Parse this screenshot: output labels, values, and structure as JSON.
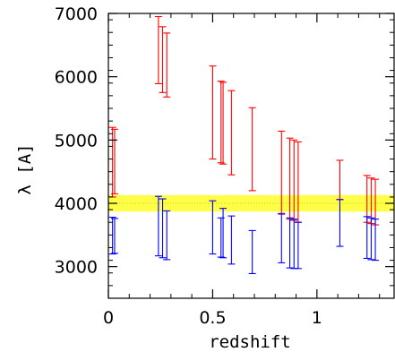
{
  "chart_data": {
    "type": "errorbar",
    "title": "",
    "xlabel": "redshift",
    "ylabel": "λ [A]",
    "xlim": [
      0,
      1.37
    ],
    "ylim": [
      2500,
      7000
    ],
    "x_ticks": [
      0,
      0.5,
      1
    ],
    "x_tick_labels": [
      "0",
      "0.5",
      "1"
    ],
    "y_ticks": [
      3000,
      4000,
      5000,
      6000,
      7000
    ],
    "y_tick_labels": [
      "3000",
      "4000",
      "5000",
      "6000",
      "7000"
    ],
    "grid": false,
    "band": {
      "y0": 3870,
      "y1": 4130,
      "color": "#ffff33",
      "reference_line": 4000
    },
    "series": [
      {
        "color": "#ff0000",
        "ranges": [
          {
            "x": 0.02,
            "low": 4100,
            "high": 5200
          },
          {
            "x": 0.03,
            "low": 4150,
            "high": 5170
          },
          {
            "x": 0.24,
            "low": 5890,
            "high": 6950
          },
          {
            "x": 0.26,
            "low": 5750,
            "high": 6790
          },
          {
            "x": 0.28,
            "low": 5680,
            "high": 6690
          },
          {
            "x": 0.5,
            "low": 4700,
            "high": 6170
          },
          {
            "x": 0.54,
            "low": 4640,
            "high": 5930
          },
          {
            "x": 0.55,
            "low": 4620,
            "high": 5910
          },
          {
            "x": 0.59,
            "low": 4450,
            "high": 5780
          },
          {
            "x": 0.69,
            "low": 4200,
            "high": 5510
          },
          {
            "x": 0.83,
            "low": 3840,
            "high": 5140
          },
          {
            "x": 0.87,
            "low": 3750,
            "high": 5030
          },
          {
            "x": 0.89,
            "low": 3730,
            "high": 5000
          },
          {
            "x": 0.91,
            "low": 3700,
            "high": 4970
          },
          {
            "x": 1.11,
            "low": 4060,
            "high": 4680
          },
          {
            "x": 1.24,
            "low": 3700,
            "high": 4440
          },
          {
            "x": 1.26,
            "low": 3680,
            "high": 4400
          },
          {
            "x": 1.28,
            "low": 3660,
            "high": 4380
          }
        ]
      },
      {
        "color": "#0000ff",
        "ranges": [
          {
            "x": 0.02,
            "low": 3200,
            "high": 3780
          },
          {
            "x": 0.03,
            "low": 3210,
            "high": 3760
          },
          {
            "x": 0.24,
            "low": 3170,
            "high": 4110
          },
          {
            "x": 0.26,
            "low": 3140,
            "high": 4070
          },
          {
            "x": 0.28,
            "low": 3110,
            "high": 3880
          },
          {
            "x": 0.5,
            "low": 3200,
            "high": 4040
          },
          {
            "x": 0.54,
            "low": 3150,
            "high": 3770
          },
          {
            "x": 0.55,
            "low": 3140,
            "high": 3920
          },
          {
            "x": 0.59,
            "low": 3040,
            "high": 3800
          },
          {
            "x": 0.69,
            "low": 2890,
            "high": 3570
          },
          {
            "x": 0.83,
            "low": 3060,
            "high": 3830
          },
          {
            "x": 0.87,
            "low": 2980,
            "high": 3770
          },
          {
            "x": 0.89,
            "low": 2970,
            "high": 3750
          },
          {
            "x": 0.91,
            "low": 2970,
            "high": 3700
          },
          {
            "x": 1.11,
            "low": 3320,
            "high": 4060
          },
          {
            "x": 1.24,
            "low": 3130,
            "high": 3790
          },
          {
            "x": 1.26,
            "low": 3110,
            "high": 3770
          },
          {
            "x": 1.28,
            "low": 3100,
            "high": 3750
          }
        ]
      }
    ]
  }
}
